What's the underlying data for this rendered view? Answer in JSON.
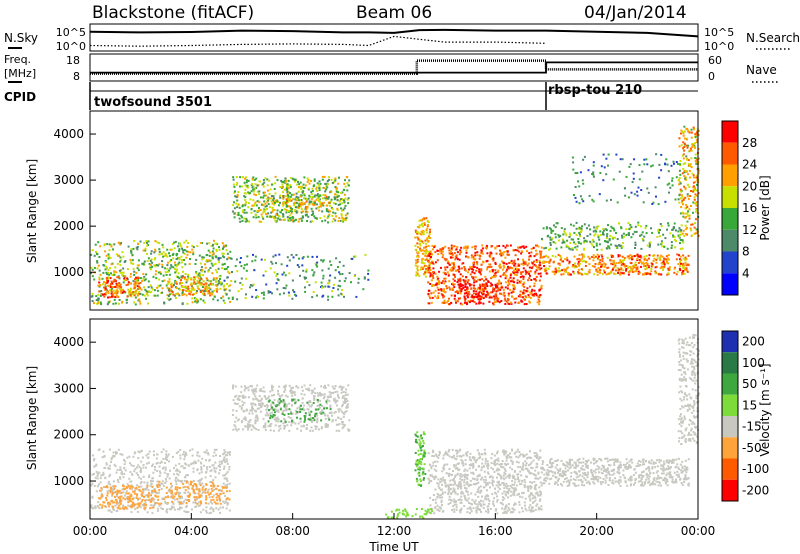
{
  "header": {
    "title": "Blackstone (fitACF)",
    "beam": "Beam 06",
    "date": "04/Jan/2014"
  },
  "top_strip": {
    "left_labels": [
      "N.Sky",
      "Freq.",
      "[MHz]",
      "CPID"
    ],
    "right_labels": [
      "N.Search",
      "Nave"
    ],
    "nsky_ticks": [
      "10^5",
      "10^0"
    ],
    "nsearch_ticks": [
      "10^5",
      "10^0"
    ],
    "freq_ticks": [
      "18",
      "8"
    ],
    "nave_ticks": [
      "60",
      "0"
    ],
    "cpid_segments": [
      {
        "label": "twofsound 3501",
        "start_hour": 0
      },
      {
        "label": "rbsp-tou 210",
        "start_hour": 18
      }
    ]
  },
  "axes": {
    "ylabel": "Slant Range [km]",
    "xlabel": "Time UT",
    "x_ticks": [
      "00:00",
      "04:00",
      "08:00",
      "12:00",
      "16:00",
      "20:00",
      "00:00"
    ],
    "y_ticks": [
      "1000",
      "2000",
      "3000",
      "4000"
    ]
  },
  "colorbars": {
    "power": {
      "label": "Power [dB]",
      "ticks": [
        "28",
        "24",
        "20",
        "16",
        "12",
        "8",
        "4"
      ],
      "colors": [
        "#ff0000",
        "#ff5a00",
        "#ffa000",
        "#c8e000",
        "#38a838",
        "#4d8a6a",
        "#2244cc",
        "#0000ff"
      ]
    },
    "velocity": {
      "label": "Velocity [m s⁻¹]",
      "ticks": [
        "200",
        "100",
        "50",
        "15",
        "-15",
        "-50",
        "-100",
        "-200"
      ],
      "colors": [
        "#1e2fb0",
        "#2a7a46",
        "#3ea83e",
        "#7ddc3a",
        "#c8c8c0",
        "#ffa43a",
        "#ff5a00",
        "#ff0000"
      ]
    }
  },
  "chart_data": [
    {
      "type": "line",
      "title": "N.Sky / N.Search",
      "x_unit": "hour UT",
      "xlim": [
        0,
        24
      ],
      "series": [
        {
          "name": "N.Sky",
          "x": [
            0,
            2,
            4,
            6,
            8,
            10,
            11,
            12,
            13,
            14,
            16,
            18,
            20,
            22,
            24
          ],
          "y": [
            0.75,
            0.72,
            0.74,
            0.8,
            0.78,
            0.72,
            0.72,
            0.7,
            0.82,
            0.83,
            0.8,
            0.8,
            0.75,
            0.7,
            0.55
          ]
        },
        {
          "name": "N.Search",
          "x": [
            0,
            2,
            4,
            6,
            8,
            10,
            11,
            12,
            13,
            14,
            16,
            18
          ],
          "y": [
            0.15,
            0.12,
            0.15,
            0.2,
            0.22,
            0.2,
            0.15,
            0.55,
            0.42,
            0.3,
            0.3,
            0.25
          ]
        }
      ]
    },
    {
      "type": "line",
      "title": "Freq. [MHz] / Nave",
      "x_unit": "hour UT",
      "xlim": [
        0,
        24
      ],
      "series": [
        {
          "name": "Freq.",
          "x": [
            0,
            18,
            18,
            24
          ],
          "y": [
            10.8,
            10.8,
            15.2,
            15.2
          ]
        },
        {
          "name": "Nave",
          "x": [
            0,
            12.9,
            12.9,
            18,
            18,
            24
          ],
          "y": [
            14,
            14,
            48,
            48,
            25,
            25
          ]
        }
      ]
    },
    {
      "type": "heatmap",
      "title": "Power [dB]",
      "x_unit": "hour UT",
      "y_unit": "Slant Range [km]",
      "xlim": [
        0,
        24
      ],
      "ylim": [
        180,
        4500
      ],
      "colorbar": "power",
      "regions": [
        {
          "x0": 0,
          "x1": 5.5,
          "r0": 300,
          "r1": 1700,
          "value": 14,
          "density": 0.35
        },
        {
          "x0": 0.3,
          "x1": 2,
          "r0": 450,
          "r1": 900,
          "value": 22,
          "density": 0.7
        },
        {
          "x0": 3,
          "x1": 5,
          "r0": 500,
          "r1": 900,
          "value": 20,
          "density": 0.55
        },
        {
          "x0": 5.6,
          "x1": 10.2,
          "r0": 2100,
          "r1": 3100,
          "value": 14,
          "density": 0.55
        },
        {
          "x0": 7.5,
          "x1": 9.5,
          "r0": 2400,
          "r1": 2700,
          "value": 18,
          "density": 0.55
        },
        {
          "x0": 5,
          "x1": 11,
          "r0": 400,
          "r1": 1400,
          "value": 10,
          "density": 0.15
        },
        {
          "x0": 12.8,
          "x1": 13.4,
          "r0": 900,
          "r1": 2200,
          "value": 20,
          "density": 0.8
        },
        {
          "x0": 13.3,
          "x1": 17.8,
          "r0": 300,
          "r1": 1600,
          "value": 24,
          "density": 0.6
        },
        {
          "x0": 14.5,
          "x1": 16,
          "r0": 450,
          "r1": 750,
          "value": 28,
          "density": 0.75
        },
        {
          "x0": 17.8,
          "x1": 23.6,
          "r0": 950,
          "r1": 1400,
          "value": 22,
          "density": 0.7
        },
        {
          "x0": 17.8,
          "x1": 23.4,
          "r0": 1500,
          "r1": 2100,
          "value": 12,
          "density": 0.35
        },
        {
          "x0": 23.2,
          "x1": 24,
          "r0": 1800,
          "r1": 4200,
          "value": 18,
          "density": 0.5
        },
        {
          "x0": 19,
          "x1": 23.5,
          "r0": 2500,
          "r1": 3600,
          "value": 8,
          "density": 0.1
        }
      ]
    },
    {
      "type": "heatmap",
      "title": "Velocity [m s⁻¹]",
      "x_unit": "hour UT",
      "y_unit": "Slant Range [km]",
      "xlim": [
        0,
        24
      ],
      "ylim": [
        180,
        4500
      ],
      "colorbar": "velocity",
      "regions": [
        {
          "x0": 0,
          "x1": 5.5,
          "r0": 300,
          "r1": 1700,
          "value": 0,
          "density": 0.35
        },
        {
          "x0": 0.3,
          "x1": 2.5,
          "r0": 400,
          "r1": 900,
          "value": -30,
          "density": 0.6
        },
        {
          "x0": 2.5,
          "x1": 5.5,
          "r0": 500,
          "r1": 1000,
          "value": -20,
          "density": 0.45
        },
        {
          "x0": 5.6,
          "x1": 10.2,
          "r0": 2100,
          "r1": 3100,
          "value": 0,
          "density": 0.5
        },
        {
          "x0": 7,
          "x1": 9.5,
          "r0": 2300,
          "r1": 2800,
          "value": 80,
          "density": 0.25
        },
        {
          "x0": 12.8,
          "x1": 13.2,
          "r0": 900,
          "r1": 2100,
          "value": 50,
          "density": 0.8
        },
        {
          "x0": 13.3,
          "x1": 17.8,
          "r0": 300,
          "r1": 1700,
          "value": 0,
          "density": 0.55
        },
        {
          "x0": 11.5,
          "x1": 13.5,
          "r0": 200,
          "r1": 400,
          "value": 30,
          "density": 0.5
        },
        {
          "x0": 17.8,
          "x1": 23.6,
          "r0": 900,
          "r1": 1500,
          "value": 0,
          "density": 0.7
        },
        {
          "x0": 23.2,
          "x1": 24,
          "r0": 1800,
          "r1": 4200,
          "value": 0,
          "density": 0.5
        }
      ]
    }
  ]
}
